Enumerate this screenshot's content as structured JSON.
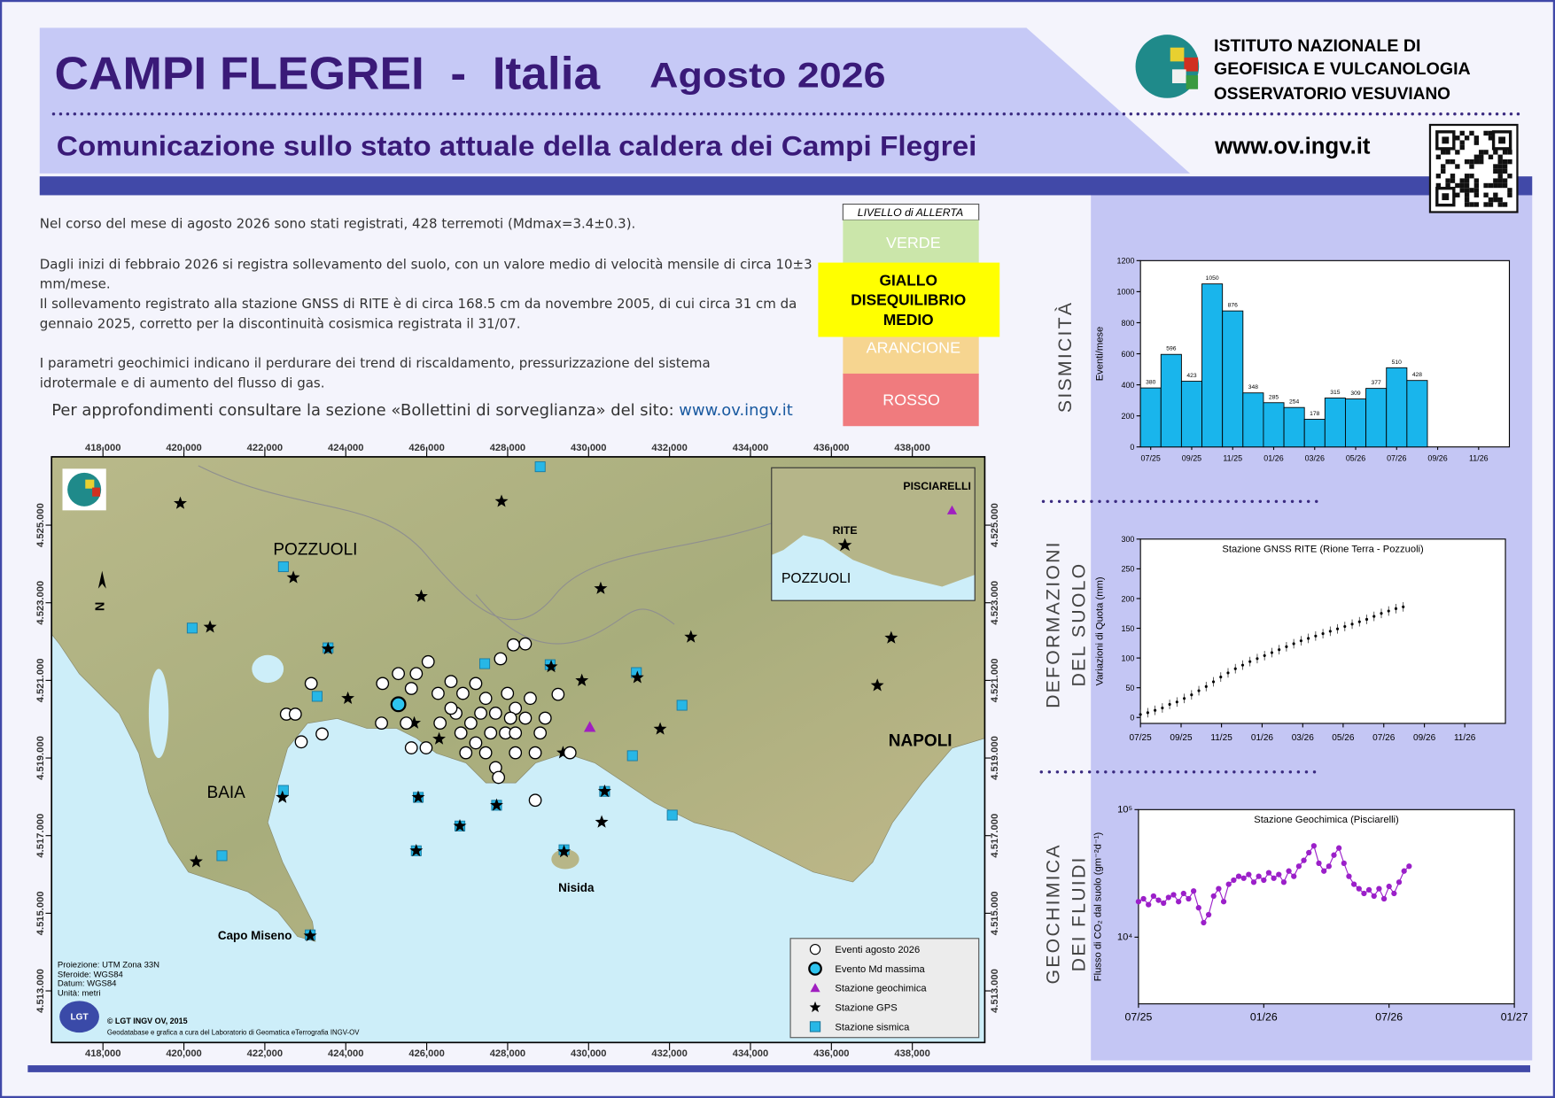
{
  "header": {
    "title": "CAMPI FLEGREI  -  Italia",
    "date": "Agosto 2026",
    "subtitle": "Comunicazione sullo stato attuale della caldera dei Campi Flegrei",
    "institute": [
      "ISTITUTO NAZIONALE DI",
      "GEOFISICA E VULCANOLOGIA",
      "OSSERVATORIO VESUVIANO"
    ],
    "website": "www.ov.ingv.it"
  },
  "bulletin": {
    "seismicity": "Nel corso del mese di agosto 2026 sono stati registrati, 428  terremoti (Mdmax=3.4±0.3).",
    "deformation": "Dagli inizi di febbraio 2026 si registra sollevamento del suolo, con un valore medio di velocità mensile di circa 10±3 mm/mese.",
    "uplift": "Il sollevamento registrato alla stazione GNSS di RITE è di circa 168.5 cm da novembre 2005, di cui circa 31 cm da gennaio 2025, corretto per la discontinuità cosismica registrata il 31/07.",
    "geochemistry": "I parametri geochimici indicano il perdurare dei trend di riscaldamento, pressurizzazione  del sistema idrotermale e di aumento del flusso di gas.",
    "more_info": "Per approfondimenti consultare la sezione «Bollettini di sorveglianza» del sito: ",
    "more_info_link": "www.ov.ingv.it"
  },
  "alert": {
    "title": "LIVELLO di ALLERTA",
    "green": "VERDE",
    "yellow": [
      "GIALLO",
      "DISEQUILIBRIO",
      "MEDIO"
    ],
    "orange": "ARANCIONE",
    "red": "ROSSO"
  },
  "sections": {
    "seismicity": "SISMICITÀ",
    "deformation": [
      "DEFORMAZIONI",
      "DEL SUOLO"
    ],
    "geochemistry": [
      "GEOCHIMICA",
      "DEI FLUIDI"
    ]
  },
  "chart_data": [
    {
      "type": "bar",
      "ylabel": "Eventi/mese",
      "color": "#19b5ec",
      "categories": [
        "07/25",
        null,
        "09/25",
        null,
        "11/25",
        null,
        "01/26",
        null,
        "03/26",
        null,
        "05/26",
        null,
        "07/26",
        null,
        "09/26",
        null,
        "11/26",
        null
      ],
      "values": [
        380,
        596,
        423,
        1050,
        876,
        348,
        285,
        254,
        178,
        315,
        309,
        377,
        510,
        428,
        null,
        null,
        null,
        null
      ],
      "ylim": [
        0,
        1200
      ],
      "yticks": [
        0,
        200,
        400,
        600,
        800,
        1000,
        1200
      ]
    },
    {
      "type": "scatter",
      "title": "Stazione GNSS RITE (Rione Terra - Pozzuoli)",
      "ylabel": "Variazioni di Quota (mm)",
      "color": "#000000",
      "x": [
        2025.5,
        2025.53,
        2025.56,
        2025.59,
        2025.62,
        2025.65,
        2025.68,
        2025.71,
        2025.74,
        2025.77,
        2025.8,
        2025.83,
        2025.86,
        2025.89,
        2025.92,
        2025.95,
        2025.98,
        2026.01,
        2026.04,
        2026.07,
        2026.1,
        2026.13,
        2026.16,
        2026.19,
        2026.22,
        2026.25,
        2026.28,
        2026.31,
        2026.34,
        2026.37,
        2026.4,
        2026.43,
        2026.46,
        2026.49,
        2026.52,
        2026.55,
        2026.58
      ],
      "values": [
        5,
        8,
        12,
        16,
        22,
        26,
        32,
        38,
        45,
        52,
        60,
        68,
        75,
        82,
        88,
        94,
        99,
        104,
        109,
        114,
        119,
        124,
        129,
        133,
        137,
        141,
        145,
        149,
        153,
        157,
        161,
        165,
        170,
        175,
        179,
        183,
        186
      ],
      "errors": [
        8,
        8,
        8,
        8,
        8,
        8,
        8,
        8,
        8,
        8,
        8,
        8,
        8,
        8,
        8,
        8,
        8,
        8,
        8,
        8,
        8,
        8,
        8,
        8,
        8,
        8,
        8,
        8,
        8,
        8,
        8,
        8,
        8,
        8,
        8,
        8,
        8
      ],
      "xlim": [
        2025.5,
        2027.0
      ],
      "xticks": [
        {
          "value": 2025.5,
          "label": "07/25"
        },
        {
          "value": 2025.667,
          "label": "09/25"
        },
        {
          "value": 2025.833,
          "label": "11/25"
        },
        {
          "value": 2026.0,
          "label": "01/26"
        },
        {
          "value": 2026.167,
          "label": "03/26"
        },
        {
          "value": 2026.333,
          "label": "05/26"
        },
        {
          "value": 2026.5,
          "label": "07/26"
        },
        {
          "value": 2026.667,
          "label": "09/26"
        },
        {
          "value": 2026.833,
          "label": "11/26"
        }
      ],
      "ylim": [
        -10,
        300
      ],
      "yticks": [
        0,
        50,
        100,
        150,
        200,
        250,
        300
      ]
    },
    {
      "type": "scatter",
      "title": "Stazione Geochimica (Pisciarelli)",
      "ylabel": "Flusso di CO₂ dal suolo (gm⁻²d⁻¹)",
      "color": "#9b1fc9",
      "log_y": true,
      "connect": true,
      "x": [
        2025.5,
        2025.52,
        2025.54,
        2025.56,
        2025.58,
        2025.6,
        2025.62,
        2025.64,
        2025.66,
        2025.68,
        2025.7,
        2025.72,
        2025.74,
        2025.76,
        2025.78,
        2025.8,
        2025.82,
        2025.84,
        2025.86,
        2025.88,
        2025.9,
        2025.92,
        2025.94,
        2025.96,
        2025.98,
        2026,
        2026.02,
        2026.04,
        2026.06,
        2026.08,
        2026.1,
        2026.12,
        2026.14,
        2026.16,
        2026.18,
        2026.2,
        2026.22,
        2026.24,
        2026.26,
        2026.28,
        2026.3,
        2026.32,
        2026.34,
        2026.36,
        2026.38,
        2026.4,
        2026.42,
        2026.44,
        2026.46,
        2026.48,
        2026.5,
        2026.52,
        2026.54,
        2026.56,
        2026.58
      ],
      "values": [
        19000,
        20000,
        18000,
        21000,
        19500,
        18500,
        20500,
        21500,
        19000,
        22000,
        20000,
        23000,
        17000,
        13000,
        15000,
        21000,
        24000,
        19000,
        26000,
        28000,
        30000,
        29000,
        31000,
        27000,
        30000,
        28000,
        32000,
        29000,
        31000,
        27000,
        33000,
        30000,
        36000,
        40000,
        46000,
        52000,
        38000,
        33000,
        36000,
        44000,
        50000,
        38000,
        30000,
        26000,
        24000,
        22000,
        23500,
        21000,
        24000,
        20000,
        25000,
        22000,
        27000,
        33000,
        36000
      ],
      "xlim": [
        2025.5,
        2027.0
      ],
      "xticks": [
        {
          "value": 2025.5,
          "label": "07/25"
        },
        {
          "value": 2026.0,
          "label": "01/26"
        },
        {
          "value": 2026.5,
          "label": "07/26"
        },
        {
          "value": 2027.0,
          "label": "01/27"
        }
      ],
      "ylim": [
        3000,
        100000
      ],
      "yticks": [
        {
          "value": 10000,
          "label": "10⁴"
        },
        {
          "value": 100000,
          "label": "10⁵"
        }
      ]
    }
  ],
  "map": {
    "xlim": [
      416730,
      439790
    ],
    "ylim": [
      4511670,
      4526760
    ],
    "xticks": [
      {
        "value": 418000,
        "label": "418,000"
      },
      {
        "value": 420000,
        "label": "420,000"
      },
      {
        "value": 422000,
        "label": "422,000"
      },
      {
        "value": 424000,
        "label": "424,000"
      },
      {
        "value": 426000,
        "label": "426,000"
      },
      {
        "value": 428000,
        "label": "428,000"
      },
      {
        "value": 430000,
        "label": "430,000"
      },
      {
        "value": 432000,
        "label": "432,000"
      },
      {
        "value": 434000,
        "label": "434,000"
      },
      {
        "value": 436000,
        "label": "436,000"
      },
      {
        "value": 438000,
        "label": "438,000"
      }
    ],
    "yticks": [
      {
        "value": 4525000,
        "label": "4.525.000"
      },
      {
        "value": 4523000,
        "label": "4.523.000"
      },
      {
        "value": 4521000,
        "label": "4.521.000"
      },
      {
        "value": 4519000,
        "label": "4.519.000"
      },
      {
        "value": 4517000,
        "label": "4.517.000"
      },
      {
        "value": 4515000,
        "label": "4.515.000"
      },
      {
        "value": 4513000,
        "label": "4.513.000"
      }
    ],
    "places": {
      "pozzuoli": "POZZUOLI",
      "baia": "BAIA",
      "napoli": "NAPOLI",
      "nisida": "Nisida",
      "capo_miseno": "Capo Miseno"
    },
    "inset": {
      "pisciarelli": "PISCIARELLI",
      "rite": "RITE",
      "pozzuoli": "POZZUOLI"
    },
    "north": "N",
    "notes": [
      "Proiezione: UTM Zona 33N",
      "Sferoide: WGS84",
      "Datum: WGS84",
      "Unità: metri"
    ],
    "credit": "© LGT INGV OV, 2015",
    "credit_detail": "Geodatabase e grafica a cura del Laboratorio di Geomatica eTerrografia INGV-OV",
    "logo": "LGT",
    "legend": [
      "Eventi agosto 2026",
      "Evento Md massima",
      "Stazione geochimica",
      "Stazione GPS",
      "Stazione sismica"
    ],
    "seismic_stations": {
      "x": [
        428804,
        422459,
        420205,
        423562,
        423292,
        427433,
        429050,
        431181,
        432308,
        431083,
        422459,
        420940,
        432067,
        429393,
        423121,
        425791,
        427727,
        430397,
        426820,
        425742
      ],
      "y": [
        4526505,
        4523929,
        4522348,
        4521838,
        4520589,
        4521430,
        4521405,
        4521201,
        4520359,
        4519059,
        4518166,
        4516483,
        4517529,
        4516636,
        4514443,
        4517987,
        4517783,
        4518140,
        4517248,
        4516610
      ]
    },
    "gps_stations": {
      "x": [
        419911,
        420646,
        422704,
        423562,
        424052,
        425865,
        427849,
        430299,
        432528,
        437478,
        437135,
        429834,
        429075,
        431206,
        431769,
        429368,
        426306,
        425693,
        422435,
        425791,
        426820,
        427727,
        425742,
        430397,
        430324,
        420303,
        423121,
        429393
      ],
      "y": [
        4525561,
        4522374,
        4523649,
        4521813,
        4520537,
        4523164,
        4525612,
        4523368,
        4522118,
        4522093,
        4520869,
        4520996,
        4521353,
        4521073,
        4519747,
        4519135,
        4519492,
        4519900,
        4517987,
        4517987,
        4517248,
        4517783,
        4516610,
        4518140,
        4517350,
        4516330,
        4514418,
        4516585
      ]
    },
    "events": {
      "x": [
        423145,
        422533,
        422753,
        422900,
        423415,
        424909,
        425300,
        425324,
        424883,
        425620,
        426036,
        426281,
        426600,
        426894,
        427212,
        427457,
        427702,
        427996,
        428192,
        428437,
        428804,
        428682,
        428192,
        427702,
        427212,
        426845,
        426722,
        426967,
        427457,
        427947,
        428437,
        428143,
        427824,
        429246,
        429540,
        428682,
        425620,
        425985,
        426330,
        427775,
        426600,
        427090,
        427580,
        428070,
        428559,
        425742,
        425497,
        427335,
        428192,
        428927
      ],
      "y": [
        4520920,
        4520130,
        4520130,
        4519416,
        4519620,
        4520920,
        4521175,
        4520410,
        4519900,
        4520792,
        4521481,
        4520665,
        4520971,
        4520665,
        4520920,
        4520537,
        4520155,
        4520665,
        4520282,
        4520027,
        4519645,
        4519135,
        4519135,
        4518752,
        4519390,
        4519645,
        4520155,
        4519135,
        4519135,
        4519645,
        4521940,
        4521915,
        4521557,
        4520640,
        4519135,
        4517911,
        4519262,
        4519262,
        4519900,
        4518500,
        4520282,
        4519900,
        4519645,
        4520027,
        4520537,
        4521175,
        4519900,
        4520155,
        4519645,
        4520027
      ]
    },
    "max_event": {
      "x": [
        425300
      ],
      "y": [
        4520385
      ]
    },
    "geochemical_stations": {
      "x": [
        430030
      ],
      "y": [
        4519798
      ]
    }
  }
}
